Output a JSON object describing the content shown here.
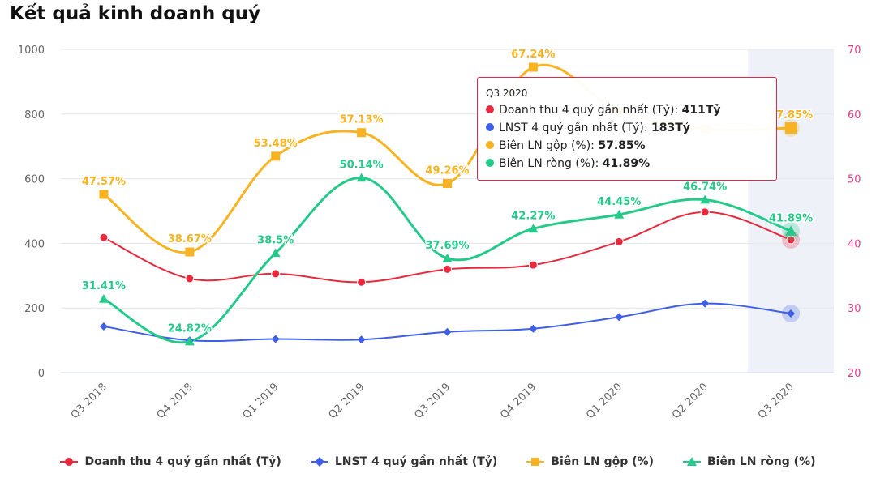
{
  "page_title": "Kết quả kinh doanh quý",
  "chart_data": {
    "type": "line",
    "title": "Kết quả kinh doanh quý",
    "categories": [
      "Q3 2018",
      "Q4 2018",
      "Q1 2019",
      "Q2 2019",
      "Q3 2019",
      "Q4 2019",
      "Q1 2020",
      "Q2 2020",
      "Q3 2020"
    ],
    "left_axis": {
      "ylim": [
        0,
        1000
      ],
      "ticks": [
        0,
        200,
        400,
        600,
        800,
        1000
      ]
    },
    "right_axis": {
      "ylim": [
        20,
        70
      ],
      "ticks": [
        20,
        30,
        40,
        50,
        60,
        70
      ]
    },
    "grid": true,
    "highlighted_category": "Q3 2020",
    "legend_position": "bottom",
    "series": [
      {
        "name": "Doanh thu 4 quý gần nhất (Tỷ)",
        "axis": "left",
        "marker": "circle",
        "color": "#e8293d",
        "values": [
          418,
          291,
          306,
          280,
          320,
          333,
          405,
          497,
          411
        ]
      },
      {
        "name": "LNST 4 quý gần nhất (Tỷ)",
        "axis": "left",
        "marker": "diamond",
        "color": "#3f5fe8",
        "values": [
          143,
          100,
          104,
          102,
          126,
          136,
          172,
          214,
          183
        ]
      },
      {
        "name": "Biên LN gộp (%)",
        "axis": "right",
        "marker": "square",
        "color": "#f7b321",
        "values": [
          47.57,
          38.67,
          53.48,
          57.13,
          49.26,
          67.24,
          60.5,
          57.7,
          57.85
        ],
        "labels": [
          "47.57%",
          "38.67%",
          "53.48%",
          "57.13%",
          "49.26%",
          "67.24%",
          "",
          "",
          "57.85%"
        ]
      },
      {
        "name": "Biên LN ròng (%)",
        "axis": "right",
        "marker": "triangle",
        "color": "#25c98a",
        "values": [
          31.41,
          24.82,
          38.5,
          50.14,
          37.69,
          42.27,
          44.45,
          46.74,
          41.89
        ],
        "labels": [
          "31.41%",
          "24.82%",
          "38.5%",
          "50.14%",
          "37.69%",
          "42.27%",
          "44.45%",
          "46.74%",
          "41.89%"
        ]
      }
    ]
  },
  "tooltip": {
    "header": "Q3 2020",
    "rows": [
      {
        "label": "Doanh thu 4 quý gần nhất (Tỷ): ",
        "value": "411Tỷ",
        "color": "#e8293d"
      },
      {
        "label": "LNST 4 quý gần nhất (Tỷ): ",
        "value": "183Tỷ",
        "color": "#3f5fe8"
      },
      {
        "label": "Biên LN gộp (%): ",
        "value": "57.85%",
        "color": "#f7b321"
      },
      {
        "label": "Biên LN ròng (%): ",
        "value": "41.89%",
        "color": "#25c98a"
      }
    ]
  },
  "legend": {
    "items": [
      {
        "label": "Doanh thu 4 quý gần nhất (Tỷ)",
        "color": "#e8293d",
        "marker": "circle"
      },
      {
        "label": "LNST 4 quý gần nhất (Tỷ)",
        "color": "#3f5fe8",
        "marker": "diamond"
      },
      {
        "label": "Biên LN gộp (%)",
        "color": "#f7b321",
        "marker": "square"
      },
      {
        "label": "Biên LN ròng (%)",
        "color": "#25c98a",
        "marker": "triangle"
      }
    ]
  }
}
